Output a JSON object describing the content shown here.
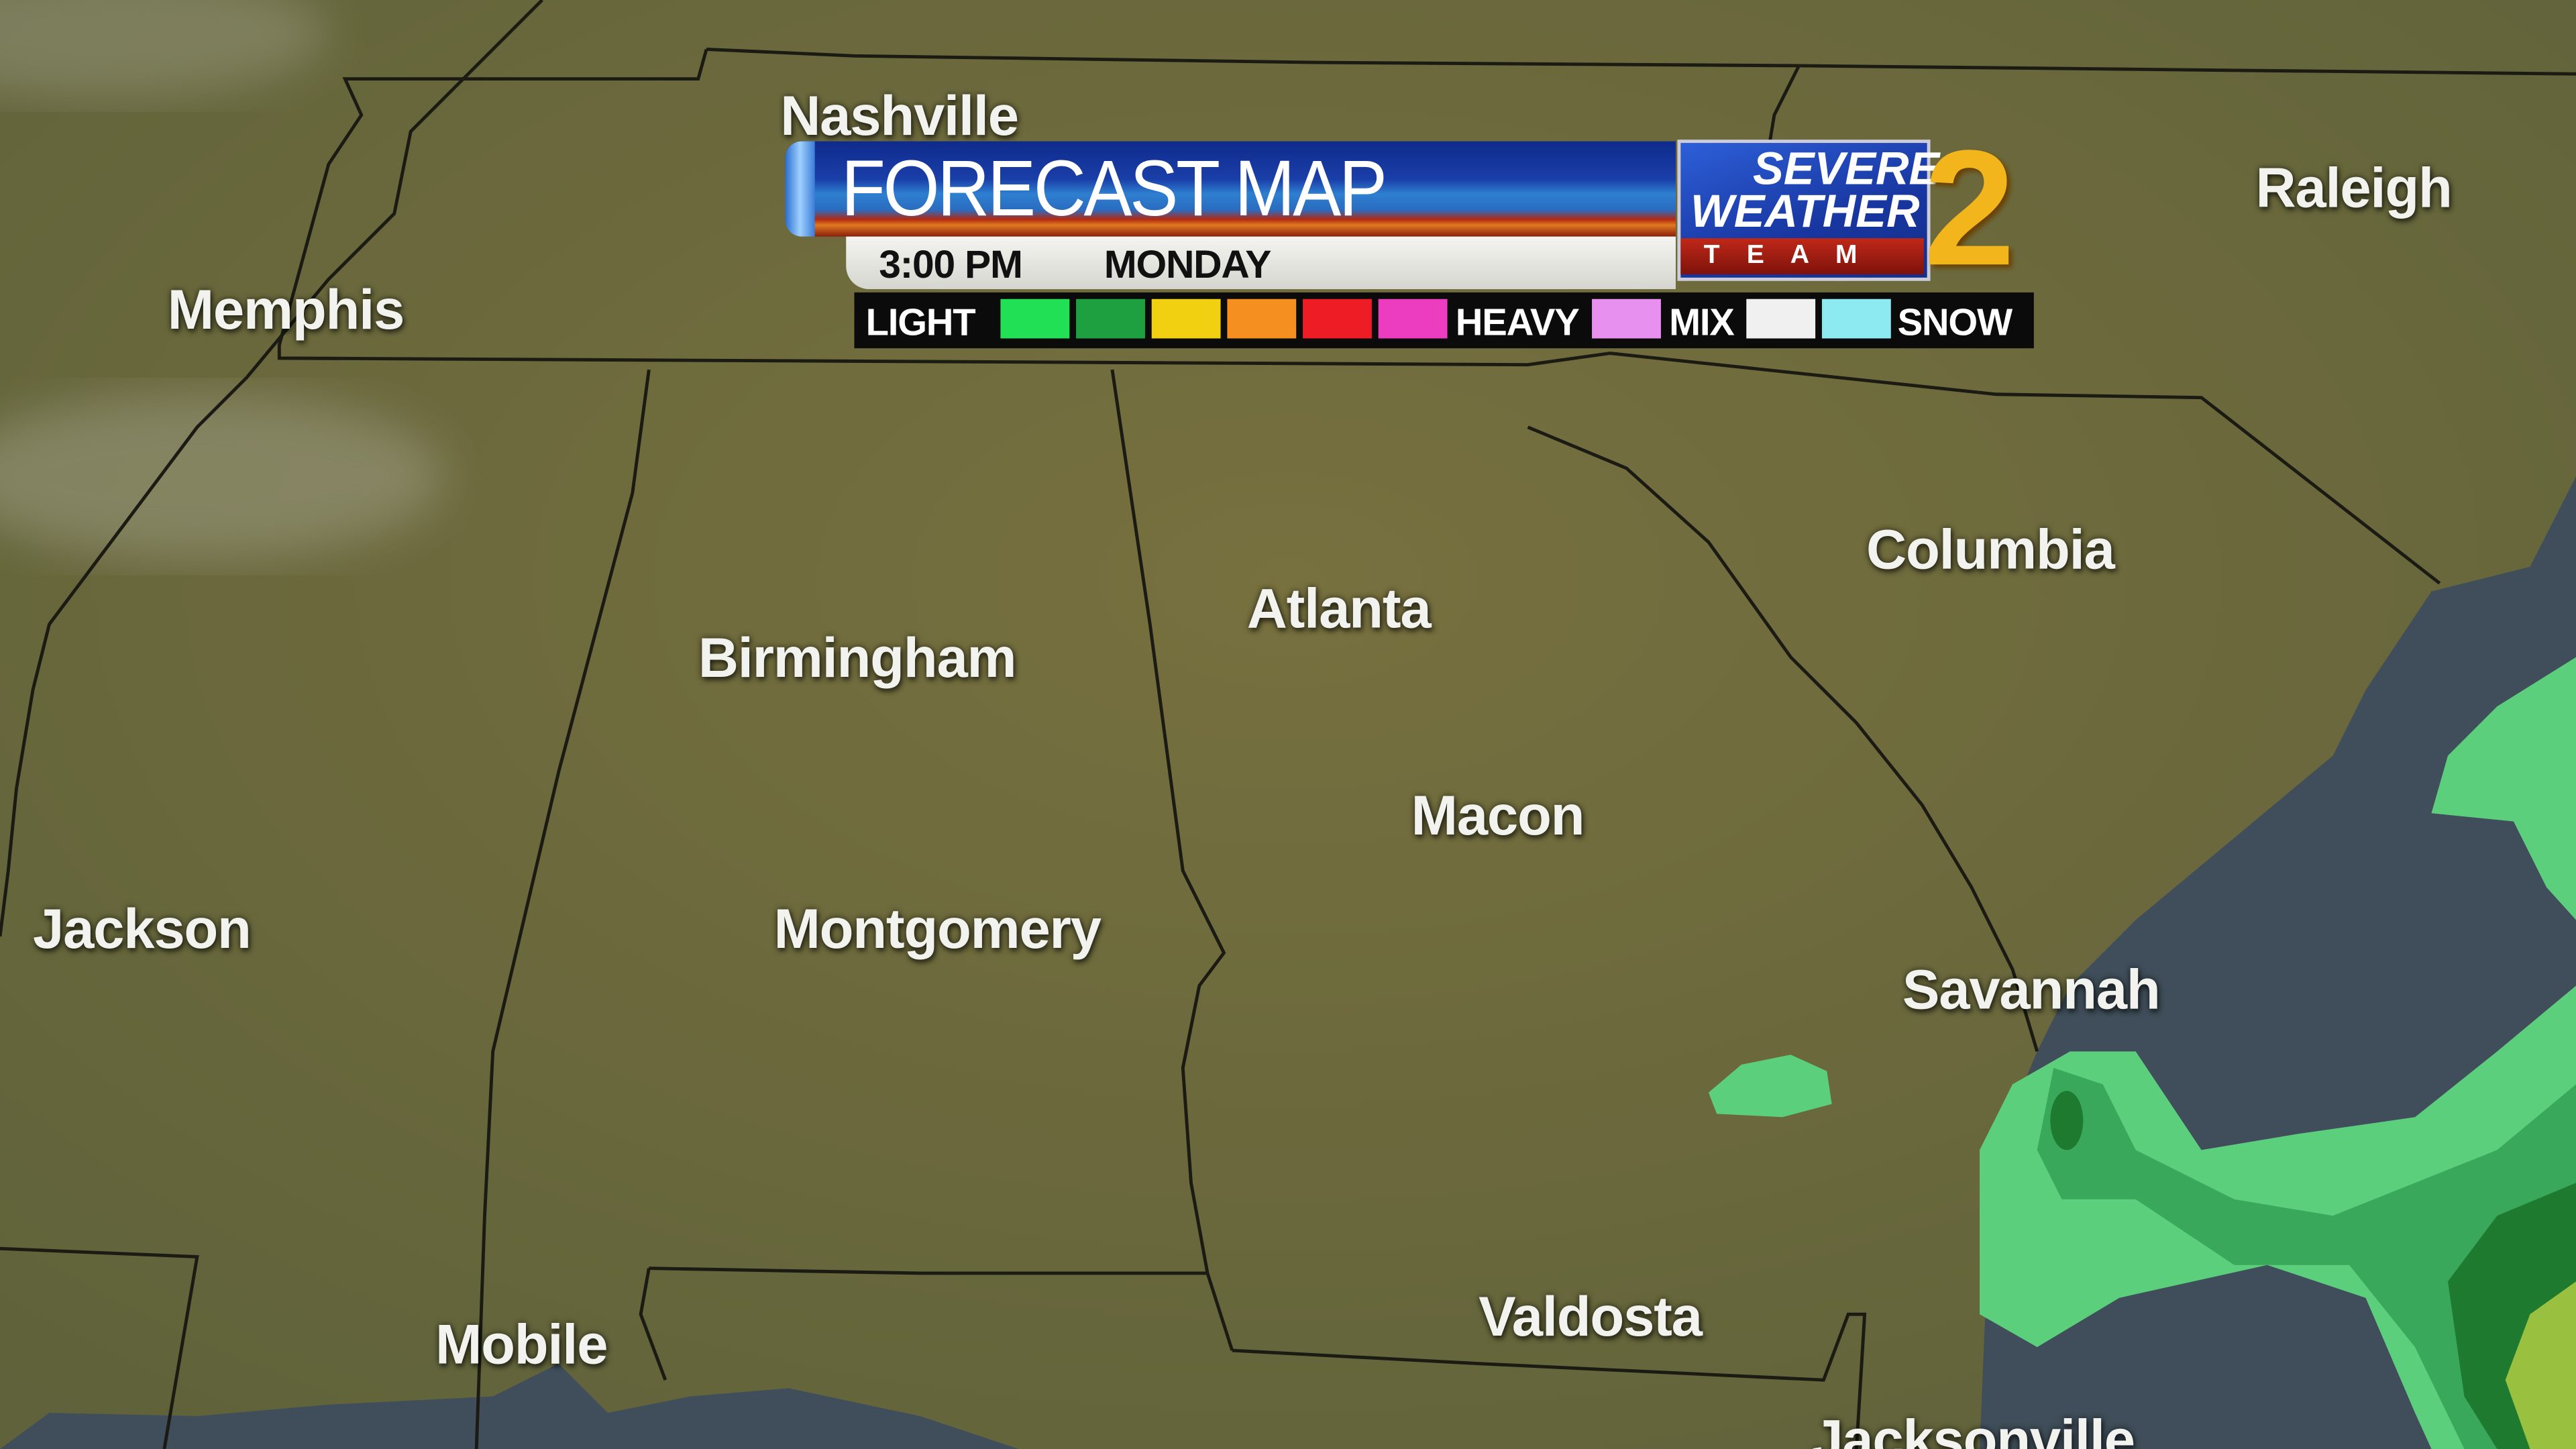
{
  "header": {
    "title": "FORECAST MAP",
    "time": "3:00 PM",
    "day": "MONDAY"
  },
  "legend": {
    "light": "LIGHT",
    "heavy": "HEAVY",
    "mix": "MIX",
    "snow": "SNOW",
    "rain_colors": [
      "#22e055",
      "#1ea040",
      "#f0d010",
      "#f59020",
      "#ee1c24",
      "#ec3cc0"
    ],
    "mix_colors": [
      "#e890f0"
    ],
    "snow_colors": [
      "#f0f0f0",
      "#8ceaf0"
    ]
  },
  "logo": {
    "line1": "SEVERE",
    "line2": "WEATHER",
    "line3": "T E A M",
    "number": "2"
  },
  "cities": {
    "nashville": "Nashville",
    "memphis": "Memphis",
    "raleigh": "Raleigh",
    "columbia": "Columbia",
    "atlanta": "Atlanta",
    "birmingham": "Birmingham",
    "macon": "Macon",
    "jackson": "Jackson",
    "montgomery": "Montgomery",
    "savannah": "Savannah",
    "mobile": "Mobile",
    "valdosta": "Valdosta",
    "jacksonville": "Jacksonville"
  },
  "colors": {
    "land": "#6b6a3d",
    "water": "#3f4e5a",
    "radar_light": "#5ccf7c",
    "radar_mid": "#3aa85a",
    "radar_dark": "#1d7a2e"
  }
}
